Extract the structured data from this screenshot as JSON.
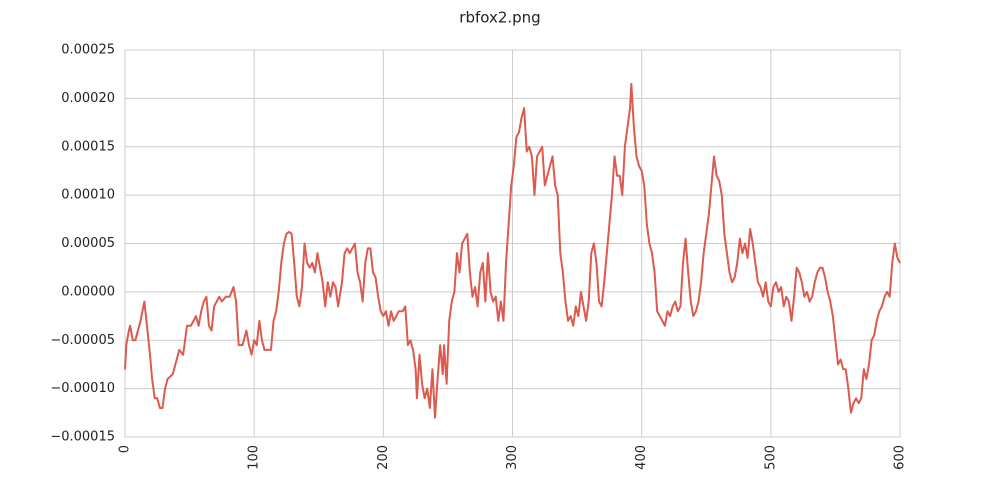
{
  "chart_data": {
    "type": "line",
    "title": "rbfox2.png",
    "x": [
      0,
      1,
      3,
      4,
      6,
      8,
      10,
      12,
      15,
      17,
      19,
      21,
      23,
      25,
      27,
      29,
      31,
      33,
      37,
      40,
      42,
      45,
      48,
      51,
      53,
      55,
      57,
      59,
      61,
      63,
      65,
      67,
      69,
      71,
      73,
      75,
      78,
      81,
      84,
      86,
      88,
      91,
      94,
      96,
      98,
      100,
      102,
      104,
      106,
      108,
      110,
      113,
      115,
      117,
      119,
      121,
      123,
      125,
      127,
      129,
      131,
      133,
      135,
      137,
      139,
      141,
      143,
      145,
      147,
      149,
      151,
      153,
      155,
      157,
      159,
      161,
      163,
      165,
      168,
      170,
      172,
      174,
      176,
      178,
      180,
      182,
      184,
      186,
      188,
      190,
      192,
      194,
      196,
      198,
      200,
      202,
      204,
      206,
      208,
      210,
      212,
      215,
      217,
      219,
      221,
      223,
      225,
      226,
      228,
      230,
      232,
      234,
      236,
      238,
      240,
      242,
      244,
      246,
      247,
      249,
      251,
      253,
      255,
      257,
      259,
      261,
      263,
      265,
      267,
      269,
      271,
      273,
      275,
      277,
      279,
      281,
      283,
      285,
      287,
      289,
      291,
      293,
      295,
      297,
      299,
      301,
      303,
      305,
      307,
      309,
      311,
      313,
      315,
      317,
      319,
      321,
      323,
      325,
      327,
      329,
      331,
      333,
      335,
      337,
      339,
      341,
      343,
      345,
      347,
      349,
      351,
      353,
      355,
      357,
      359,
      361,
      363,
      365,
      367,
      369,
      371,
      373,
      375,
      377,
      379,
      381,
      383,
      385,
      387,
      389,
      391,
      392,
      394,
      396,
      398,
      400,
      402,
      404,
      406,
      408,
      410,
      412,
      414,
      416,
      418,
      420,
      422,
      424,
      426,
      428,
      430,
      432,
      434,
      436,
      438,
      440,
      442,
      444,
      446,
      448,
      450,
      452,
      454,
      456,
      458,
      460,
      462,
      464,
      466,
      468,
      470,
      472,
      474,
      476,
      478,
      480,
      482,
      484,
      486,
      488,
      490,
      492,
      494,
      496,
      498,
      500,
      502,
      504,
      506,
      508,
      510,
      512,
      514,
      516,
      518,
      520,
      522,
      524,
      526,
      528,
      530,
      532,
      534,
      536,
      538,
      540,
      542,
      544,
      546,
      548,
      550,
      552,
      554,
      556,
      558,
      560,
      562,
      564,
      566,
      568,
      570,
      572,
      574,
      576,
      578,
      580,
      582,
      584,
      586,
      588,
      590,
      592,
      594,
      596,
      598,
      600
    ],
    "series": [
      {
        "color": "#dc5a4e",
        "values": [
          -8e-05,
          -5.5e-05,
          -4e-05,
          -3.5e-05,
          -5e-05,
          -5e-05,
          -4e-05,
          -3e-05,
          -1e-05,
          -3.5e-05,
          -6e-05,
          -9e-05,
          -0.00011,
          -0.00011,
          -0.00012,
          -0.00012,
          -0.0001,
          -9e-05,
          -8.5e-05,
          -7e-05,
          -6e-05,
          -6.5e-05,
          -3.5e-05,
          -3.5e-05,
          -3e-05,
          -2.5e-05,
          -3.5e-05,
          -2e-05,
          -1e-05,
          -5e-06,
          -3.5e-05,
          -4e-05,
          -1.5e-05,
          -1e-05,
          -5e-06,
          -1e-05,
          -5e-06,
          -5e-06,
          5e-06,
          -1e-05,
          -5.5e-05,
          -5.5e-05,
          -4e-05,
          -5.5e-05,
          -6.5e-05,
          -5e-05,
          -5.5e-05,
          -3e-05,
          -5e-05,
          -6e-05,
          -6e-05,
          -6e-05,
          -3e-05,
          -2e-05,
          0,
          3e-05,
          5e-05,
          6e-05,
          6.2e-05,
          6e-05,
          3e-05,
          -5e-06,
          -1.5e-05,
          5e-06,
          5e-05,
          3e-05,
          2.5e-05,
          3e-05,
          2e-05,
          4e-05,
          2.5e-05,
          1e-05,
          -1.5e-05,
          1e-05,
          -5e-06,
          1e-05,
          5e-06,
          -1.5e-05,
          1e-05,
          4e-05,
          4.5e-05,
          4e-05,
          4.5e-05,
          5e-05,
          2e-05,
          1e-05,
          -1e-05,
          3e-05,
          4.5e-05,
          4.5e-05,
          2e-05,
          1.5e-05,
          -5e-06,
          -2e-05,
          -2.5e-05,
          -2e-05,
          -3.5e-05,
          -2e-05,
          -3e-05,
          -2.5e-05,
          -2e-05,
          -2e-05,
          -1.5e-05,
          -5.5e-05,
          -5e-05,
          -6e-05,
          -8e-05,
          -0.00011,
          -6.5e-05,
          -9.5e-05,
          -0.00011,
          -0.0001,
          -0.00012,
          -8e-05,
          -0.00013,
          -9e-05,
          -5.5e-05,
          -8.5e-05,
          -5.5e-05,
          -9.5e-05,
          -3e-05,
          -1e-05,
          0,
          4e-05,
          2e-05,
          5e-05,
          5.5e-05,
          6e-05,
          2e-05,
          -5e-06,
          5e-06,
          -1.5e-05,
          2e-05,
          3e-05,
          -1e-05,
          4e-05,
          0,
          -1e-05,
          -5e-06,
          -3e-05,
          -1e-05,
          -3e-05,
          3e-05,
          7e-05,
          0.00011,
          0.00013,
          0.00016,
          0.000165,
          0.00018,
          0.00019,
          0.000145,
          0.00015,
          0.00014,
          0.0001,
          0.00014,
          0.000145,
          0.00015,
          0.00011,
          0.00012,
          0.00013,
          0.00014,
          0.00011,
          0.0001,
          4e-05,
          2e-05,
          -1e-05,
          -3e-05,
          -2.5e-05,
          -3.5e-05,
          -1.5e-05,
          -2.5e-05,
          0,
          -1.5e-05,
          -3e-05,
          -1e-05,
          4e-05,
          5e-05,
          3e-05,
          -1e-05,
          -1.5e-05,
          1e-05,
          4e-05,
          7e-05,
          0.0001,
          0.00014,
          0.00012,
          0.00012,
          0.0001,
          0.00015,
          0.00017,
          0.00019,
          0.000215,
          0.00017,
          0.00014,
          0.00013,
          0.000125,
          0.00011,
          7e-05,
          5e-05,
          4e-05,
          2e-05,
          -2e-05,
          -2.5e-05,
          -3e-05,
          -3.5e-05,
          -2e-05,
          -2.5e-05,
          -1.5e-05,
          -1e-05,
          -2e-05,
          -1.5e-05,
          3e-05,
          5.5e-05,
          2e-05,
          -1e-05,
          -2.5e-05,
          -2e-05,
          -1e-05,
          1e-05,
          4e-05,
          6e-05,
          8e-05,
          0.00011,
          0.00014,
          0.00012,
          0.000115,
          0.0001,
          6e-05,
          4e-05,
          2e-05,
          1e-05,
          1.5e-05,
          3e-05,
          5.5e-05,
          4e-05,
          5e-05,
          3.5e-05,
          6.5e-05,
          5e-05,
          3e-05,
          1e-05,
          5e-06,
          -5e-06,
          1e-05,
          -1e-05,
          -1.5e-05,
          5e-06,
          1e-05,
          0,
          5e-06,
          -1.5e-05,
          -5e-06,
          -1e-05,
          -3e-05,
          -5e-06,
          2.5e-05,
          2e-05,
          1e-05,
          -5e-06,
          0,
          -1e-05,
          -5e-06,
          1e-05,
          2e-05,
          2.5e-05,
          2.5e-05,
          1.5e-05,
          0,
          -1e-05,
          -2.5e-05,
          -5e-05,
          -7.5e-05,
          -7e-05,
          -8e-05,
          -8e-05,
          -0.0001,
          -0.000125,
          -0.000115,
          -0.00011,
          -0.000115,
          -0.00011,
          -8e-05,
          -9e-05,
          -7.5e-05,
          -5e-05,
          -4.5e-05,
          -3e-05,
          -2e-05,
          -1.5e-05,
          -5e-06,
          0,
          -5e-06,
          3e-05,
          5e-05,
          3.5e-05,
          3e-05
        ]
      }
    ],
    "xlim": [
      0,
      600
    ],
    "xticks": [
      0,
      100,
      200,
      300,
      400,
      500,
      600
    ],
    "ylim": [
      -0.00015,
      0.00025
    ],
    "yticks": [
      {
        "value": -0.00015,
        "label": "−0.00015"
      },
      {
        "value": -0.0001,
        "label": "−0.00010"
      },
      {
        "value": -5e-05,
        "label": "−0.00005"
      },
      {
        "value": 0,
        "label": "0.00000"
      },
      {
        "value": 5e-05,
        "label": "0.00005"
      },
      {
        "value": 0.0001,
        "label": "0.00010"
      },
      {
        "value": 0.00015,
        "label": "0.00015"
      },
      {
        "value": 0.0002,
        "label": "0.00020"
      },
      {
        "value": 0.00025,
        "label": "0.00025"
      }
    ],
    "grid": true
  }
}
